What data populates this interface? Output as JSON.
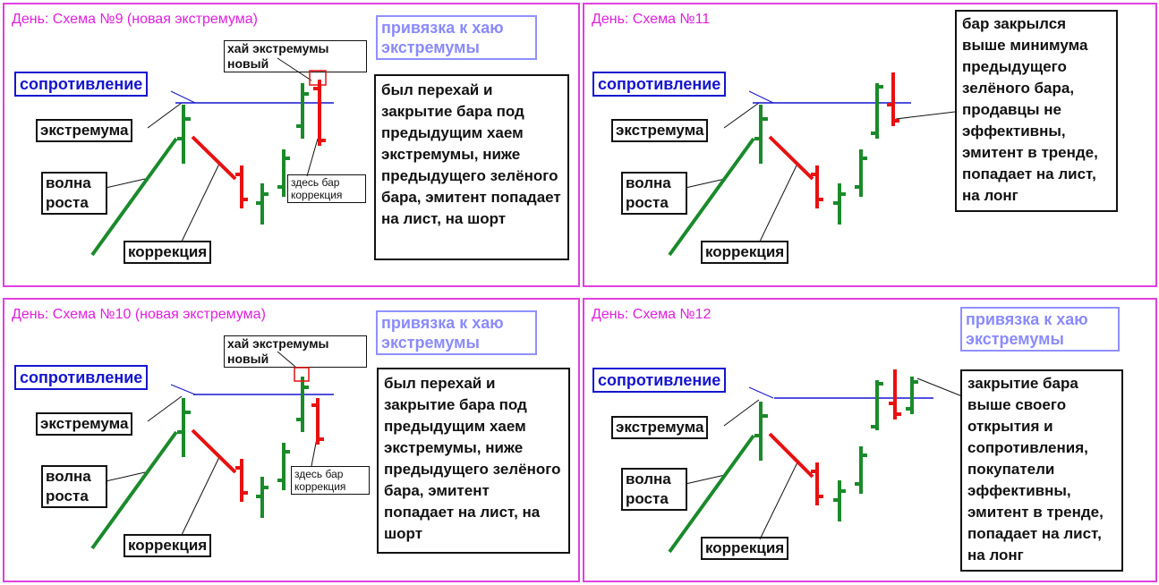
{
  "panels": [
    {
      "title": "День: Схема №9 (новая экстремума)",
      "anchor_note": "привязка к хаю экстремумы",
      "labels": {
        "resistance": "сопротивление",
        "extremum": "экстремума",
        "wave": "волна роста",
        "correction": "коррекция",
        "high_new": "хай экстремумы новый",
        "here_bar": "здесь бар коррекция"
      },
      "note": "был перехай и закрытие бара под предыдущим хаем экстремумы, ниже предыдущего зелёного бара, эмитент попадает на лист, на шорт"
    },
    {
      "title": "День: Схема №11",
      "labels": {
        "resistance": "сопротивление",
        "extremum": "экстремума",
        "wave": "волна роста",
        "correction": "коррекция"
      },
      "note": "бар закрылся выше минимума предыдущего зелёного бара, продавцы не эффективны, эмитент в тренде, попадает на лист, на лонг"
    },
    {
      "title": "День: Схема №10 (новая экстремума)",
      "anchor_note": "привязка к хаю экстремумы",
      "labels": {
        "resistance": "сопротивление",
        "extremum": "экстремума",
        "wave": "волна роста",
        "correction": "коррекция",
        "high_new": "хай экстремумы новый",
        "here_bar": "здесь бар коррекция"
      },
      "note": "был перехай и закрытие бара под предыдущим хаем экстремумы, ниже предыдущего зелёного бара, эмитент попадает на лист, на шорт"
    },
    {
      "title": "День: Схема №12",
      "anchor_note": "привязка к хаю экстремумы",
      "labels": {
        "resistance": "сопротивление",
        "extremum": "экстремума",
        "wave": "волна роста",
        "correction": "коррекция"
      },
      "note": "закрытие бара выше своего открытия и сопротивления, покупатели эффективны, эмитент в тренде, попадает на лист, на лонг"
    }
  ],
  "colors": {
    "panel_border": "#e040e0",
    "title": "#e020e0",
    "resistance": "#1515d0",
    "green": "#1a8a2a",
    "red": "#e81010",
    "anchor_note": "#8a8aff"
  }
}
